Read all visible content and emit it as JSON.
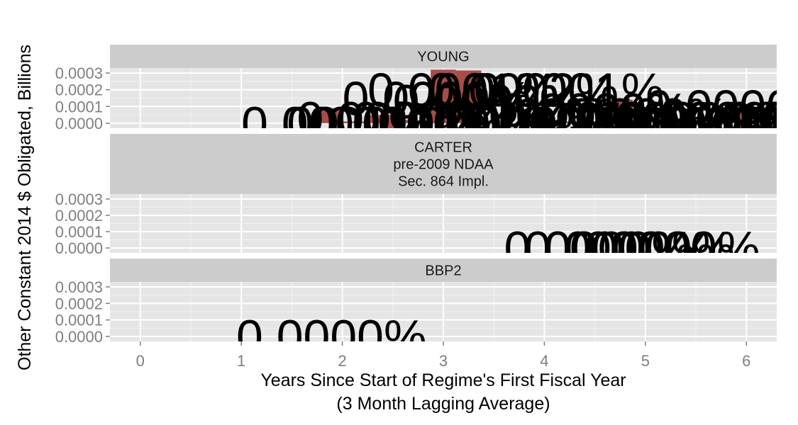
{
  "chart_data": {
    "type": "bar",
    "xlabel": "Years Since Start of Regime's First Fiscal Year",
    "xlabel_sub": "(3 Month Lagging Average)",
    "ylabel": "Other Constant 2014 $ Obligated, Billions",
    "xlim": [
      -0.3,
      6.3
    ],
    "ylim": [
      -3e-05,
      0.00033
    ],
    "x_ticks": [
      0,
      1,
      2,
      3,
      4,
      5,
      6
    ],
    "x_tick_labels": [
      "0",
      "1",
      "2",
      "3",
      "4",
      "5",
      "6"
    ],
    "y_ticks": [
      0,
      0.0001,
      0.0002,
      0.0003
    ],
    "y_tick_labels": [
      "0.0000",
      "0.0001",
      "0.0002",
      "0.0003"
    ],
    "bar_width": 0.25,
    "bar_color": "#a64d4a",
    "grid": true,
    "panel_background": "#e5e5e5",
    "strip_background": "#cccccc",
    "panels": [
      {
        "strip": [
          "YOUNG"
        ],
        "bars": [
          {
            "x": 1.875,
            "y": 9e-05
          },
          {
            "x": 2.125,
            "y": 1e-05
          },
          {
            "x": 2.375,
            "y": 5e-05
          },
          {
            "x": 2.5,
            "y": -3e-05
          },
          {
            "x": 2.625,
            "y": 2e-05
          },
          {
            "x": 2.875,
            "y": 1e-05
          },
          {
            "x": 3.0,
            "y": 0.00032
          },
          {
            "x": 3.125,
            "y": 1e-05
          },
          {
            "x": 3.25,
            "y": 0.000315
          },
          {
            "x": 3.5,
            "y": 5e-06
          },
          {
            "x": 3.875,
            "y": 1e-05
          },
          {
            "x": 4.125,
            "y": 1e-05
          },
          {
            "x": 4.375,
            "y": 1e-05
          },
          {
            "x": 4.625,
            "y": 1e-05
          },
          {
            "x": 4.75,
            "y": 0.00014
          },
          {
            "x": 5.125,
            "y": 1e-05
          },
          {
            "x": 5.375,
            "y": 5e-06
          },
          {
            "x": 5.625,
            "y": -1e-05
          },
          {
            "x": 5.875,
            "y": 8e-05
          },
          {
            "x": 6.125,
            "y": 1e-05
          }
        ],
        "labels": [
          {
            "x": 1.0,
            "y": 0.0,
            "text": "0.0000%"
          },
          {
            "x": 1.45,
            "y": 0.0,
            "text": "0.0000%"
          },
          {
            "x": 1.55,
            "y": 3e-05,
            "text": "0.0000%"
          },
          {
            "x": 1.7,
            "y": 0.0,
            "text": "0.0000%"
          },
          {
            "x": 2.0,
            "y": 0.00015,
            "text": "0.0000%"
          },
          {
            "x": 2.1,
            "y": 3e-05,
            "text": "0.0000%"
          },
          {
            "x": 2.25,
            "y": 0.0002,
            "text": "0.0001%"
          },
          {
            "x": 2.35,
            "y": 0.0,
            "text": "0.0000%"
          },
          {
            "x": 2.5,
            "y": 0.00013,
            "text": "0.0000%"
          },
          {
            "x": 2.65,
            "y": 0.0,
            "text": "0.0000%"
          },
          {
            "x": 2.85,
            "y": 0.0002,
            "text": "0.0002%"
          },
          {
            "x": 3.05,
            "y": 5e-05,
            "text": "0.0000%"
          },
          {
            "x": 3.2,
            "y": 0.0,
            "text": "0.0000%"
          },
          {
            "x": 3.3,
            "y": 0.0002,
            "text": "0.0001%"
          },
          {
            "x": 3.55,
            "y": 8e-05,
            "text": "0.0000%"
          },
          {
            "x": 3.75,
            "y": 0.0,
            "text": "0.0000%"
          },
          {
            "x": 3.95,
            "y": 5e-05,
            "text": "0.0000%"
          },
          {
            "x": 4.15,
            "y": 0.0,
            "text": "0.0000%"
          },
          {
            "x": 4.3,
            "y": 3e-05,
            "text": "0.0000%"
          },
          {
            "x": 4.5,
            "y": 0.0,
            "text": "0.0000%"
          },
          {
            "x": 4.75,
            "y": 3e-05,
            "text": "0.0000%"
          },
          {
            "x": 5.0,
            "y": 0.0001,
            "text": "0.0000%"
          },
          {
            "x": 5.2,
            "y": 0.0,
            "text": "0.0000%"
          },
          {
            "x": 5.4,
            "y": 3e-05,
            "text": "0.0000%"
          },
          {
            "x": 5.6,
            "y": 0.0,
            "text": "0.0000%"
          },
          {
            "x": 5.75,
            "y": 3e-05,
            "text": "0.0000%"
          },
          {
            "x": 5.95,
            "y": 0.0,
            "text": "0.0000%"
          },
          {
            "x": 6.15,
            "y": 2e-05,
            "text": "0.0000%"
          }
        ]
      },
      {
        "strip": [
          "CARTER",
          "pre-2009 NDAA",
          "Sec. 864 Impl."
        ],
        "bars": [],
        "labels": [
          {
            "x": 3.6,
            "y": 0.0,
            "text": "0.0000%"
          },
          {
            "x": 3.8,
            "y": 0.0,
            "text": "0.0000%"
          },
          {
            "x": 4.0,
            "y": 0.0,
            "text": "0.0000%"
          },
          {
            "x": 4.25,
            "y": 0.0,
            "text": "0.0000%"
          }
        ]
      },
      {
        "strip": [
          "BBP2"
        ],
        "bars": [],
        "labels": [
          {
            "x": 0.95,
            "y": 0.0,
            "text": "0.0000%"
          }
        ]
      }
    ]
  }
}
